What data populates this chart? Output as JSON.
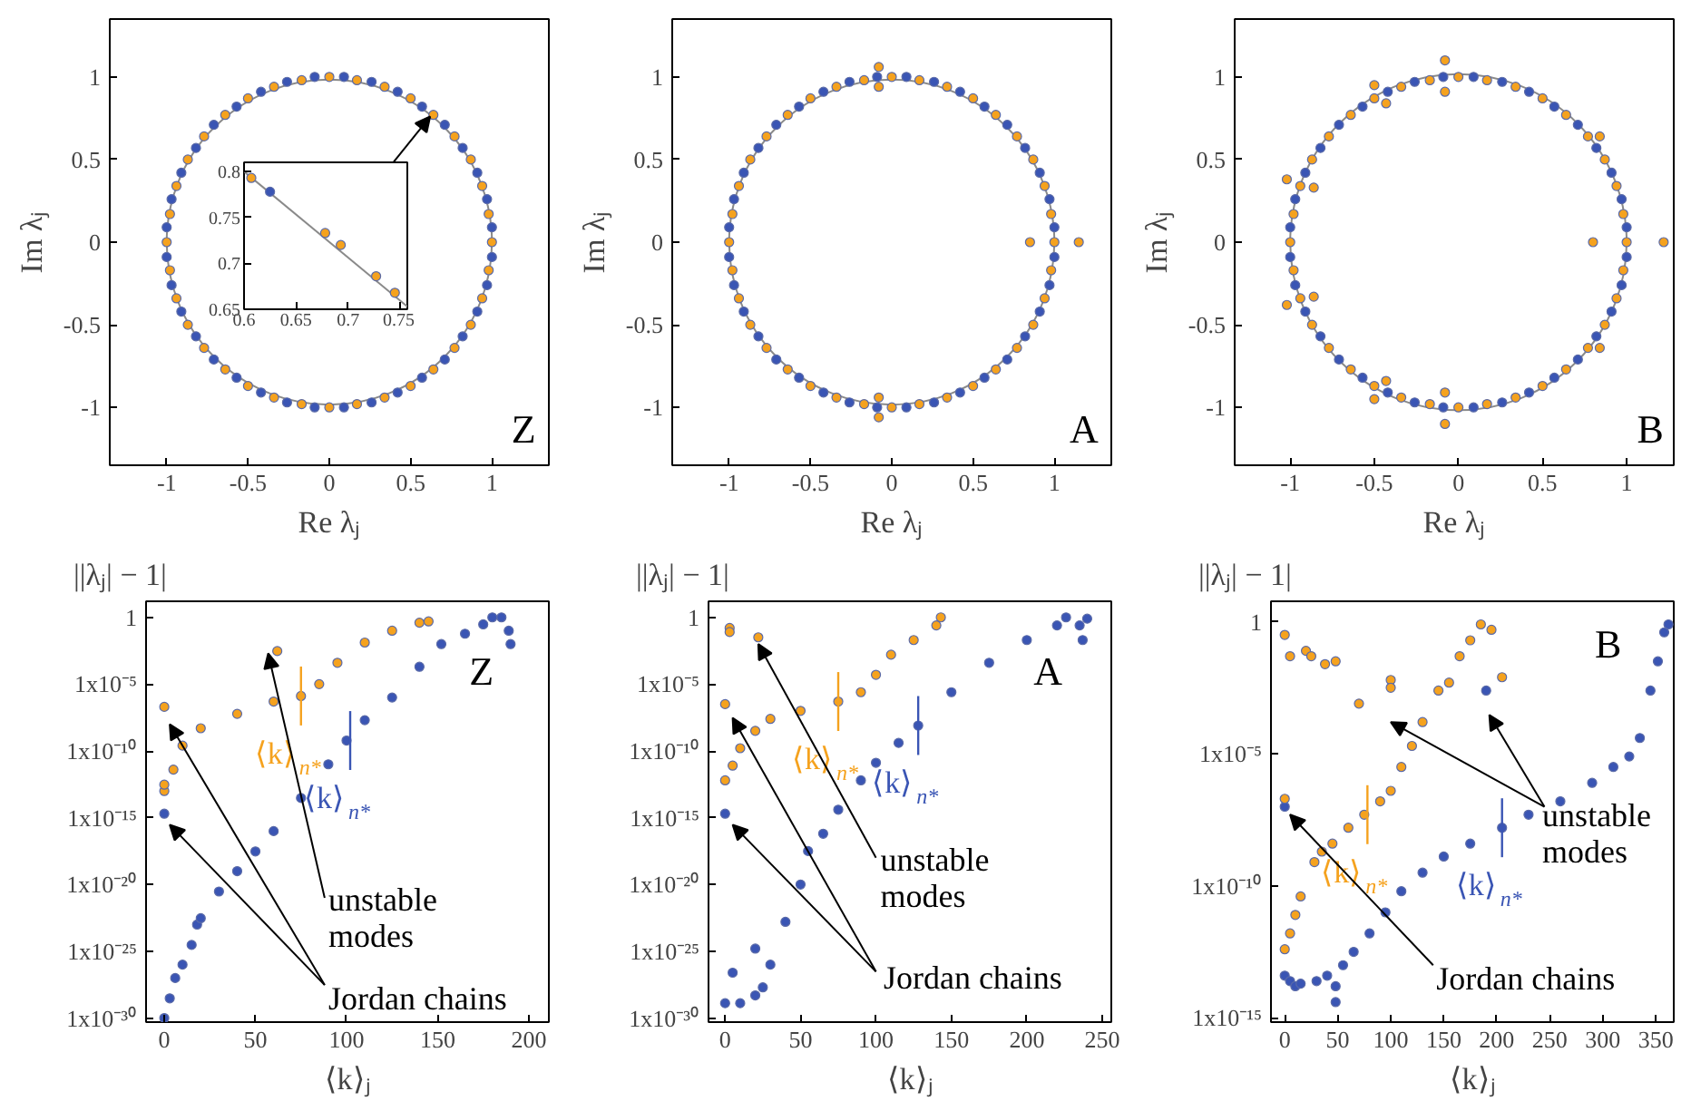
{
  "chart_data": [
    {
      "type": "scatter",
      "xlabel": "Re λⱼ",
      "ylabel": "Im λⱼ",
      "xlim": [
        -1.35,
        1.35
      ],
      "ylim": [
        -1.35,
        1.35
      ],
      "xticks": [
        -1,
        -0.5,
        0,
        0.5,
        1
      ],
      "yticks": [
        -1,
        -0.5,
        0,
        0.5,
        1
      ],
      "marker": "circle",
      "annotations": [
        "Z"
      ],
      "series": [
        {
          "color": "#3a55b4",
          "x": [
            1.0,
            0.97,
            0.91,
            0.82,
            0.71,
            0.57,
            0.42,
            0.26,
            0.09,
            -0.09,
            -0.26,
            -0.42,
            -0.57,
            -0.71,
            -0.82,
            -0.91,
            -0.97,
            -1.0,
            -1.0,
            -0.97,
            -0.91,
            -0.82,
            -0.71,
            -0.57,
            -0.42,
            -0.26,
            -0.09,
            0.09,
            0.26,
            0.42,
            0.57,
            0.71,
            0.82,
            0.91,
            0.97,
            1.0
          ],
          "values": [
            0.09,
            0.26,
            0.42,
            0.57,
            0.71,
            0.82,
            0.91,
            0.97,
            1.0,
            1.0,
            0.97,
            0.91,
            0.82,
            0.71,
            0.57,
            0.42,
            0.26,
            0.09,
            -0.09,
            -0.26,
            -0.42,
            -0.57,
            -0.71,
            -0.82,
            -0.91,
            -0.97,
            -1.0,
            -1.0,
            -0.97,
            -0.91,
            -0.82,
            -0.71,
            -0.57,
            -0.42,
            -0.26,
            -0.09
          ]
        },
        {
          "color": "#f5a21e",
          "x": [
            1,
            0.98,
            0.94,
            0.87,
            0.77,
            0.64,
            0.5,
            0.34,
            0.17,
            0,
            -0.17,
            -0.34,
            -0.5,
            -0.64,
            -0.77,
            -0.87,
            -0.94,
            -0.98,
            -1,
            -0.98,
            -0.94,
            -0.87,
            -0.77,
            -0.64,
            -0.5,
            -0.34,
            -0.17,
            0,
            0.17,
            0.34,
            0.5,
            0.64,
            0.77,
            0.87,
            0.94,
            0.98
          ],
          "values": [
            0,
            0.17,
            0.34,
            0.5,
            0.64,
            0.77,
            0.87,
            0.94,
            0.98,
            1,
            0.98,
            0.94,
            0.87,
            0.77,
            0.64,
            0.5,
            0.34,
            0.17,
            0,
            -0.17,
            -0.34,
            -0.5,
            -0.64,
            -0.77,
            -0.87,
            -0.94,
            -0.98,
            -1,
            -0.98,
            -0.94,
            -0.87,
            -0.77,
            -0.64,
            -0.5,
            -0.34,
            -0.17
          ]
        }
      ]
    },
    {
      "type": "scatter",
      "xlim": [
        0.6,
        0.757
      ],
      "ylim": [
        0.65,
        0.81
      ],
      "xticks": [
        0.6,
        0.65,
        0.7,
        0.75
      ],
      "yticks": [
        0.65,
        0.7,
        0.75,
        0.8
      ],
      "marker": "circle",
      "series": [
        {
          "type": "line",
          "marker": "none",
          "color": "#8a8a8a",
          "x": [
            0.6,
            0.757
          ],
          "values": [
            0.8,
            0.653
          ]
        },
        {
          "color": "#3a55b4",
          "x": [
            0.625
          ],
          "values": [
            0.778
          ]
        },
        {
          "color": "#f5a21e",
          "x": [
            0.607,
            0.678,
            0.693,
            0.727,
            0.745
          ],
          "values": [
            0.793,
            0.733,
            0.72,
            0.686,
            0.668
          ]
        }
      ]
    },
    {
      "type": "scatter",
      "xlabel": "Re λⱼ",
      "ylabel": "Im λⱼ",
      "xlim": [
        -1.35,
        1.35
      ],
      "ylim": [
        -1.35,
        1.35
      ],
      "xticks": [
        -1,
        -0.5,
        0,
        0.5,
        1
      ],
      "yticks": [
        -1,
        -0.5,
        0,
        0.5,
        1
      ],
      "marker": "circle",
      "annotations": [
        "A"
      ],
      "series": [
        {
          "color": "#3a55b4",
          "x": [
            1.0,
            0.97,
            0.91,
            0.82,
            0.71,
            0.57,
            0.42,
            0.26,
            0.09,
            -0.09,
            -0.26,
            -0.42,
            -0.57,
            -0.71,
            -0.82,
            -0.91,
            -0.97,
            -1.0,
            -1.0,
            -0.97,
            -0.91,
            -0.82,
            -0.71,
            -0.57,
            -0.42,
            -0.26,
            -0.09,
            0.09,
            0.26,
            0.42,
            0.57,
            0.71,
            0.82,
            0.91,
            0.97,
            1.0
          ],
          "values": [
            0.09,
            0.26,
            0.42,
            0.57,
            0.71,
            0.82,
            0.91,
            0.97,
            1.0,
            1.0,
            0.97,
            0.91,
            0.82,
            0.71,
            0.57,
            0.42,
            0.26,
            0.09,
            -0.09,
            -0.26,
            -0.42,
            -0.57,
            -0.71,
            -0.82,
            -0.91,
            -0.97,
            -1.0,
            -1.0,
            -0.97,
            -0.91,
            -0.82,
            -0.71,
            -0.57,
            -0.42,
            -0.26,
            -0.09
          ]
        },
        {
          "color": "#f5a21e",
          "x": [
            1,
            0.98,
            0.94,
            0.87,
            0.77,
            0.64,
            0.5,
            0.34,
            0.17,
            0,
            -0.17,
            -0.34,
            -0.5,
            -0.64,
            -0.77,
            -0.87,
            -0.94,
            -0.98,
            -1,
            -0.98,
            -0.94,
            -0.87,
            -0.77,
            -0.64,
            -0.5,
            -0.34,
            -0.17,
            0,
            0.17,
            0.34,
            0.5,
            0.64,
            0.77,
            0.87,
            0.94,
            0.98,
            0.85,
            1.15,
            -0.08,
            -0.08,
            -0.08,
            -0.08
          ],
          "values": [
            0,
            0.17,
            0.34,
            0.5,
            0.64,
            0.77,
            0.87,
            0.94,
            0.98,
            1,
            0.98,
            0.94,
            0.87,
            0.77,
            0.64,
            0.5,
            0.34,
            0.17,
            0,
            -0.17,
            -0.34,
            -0.5,
            -0.64,
            -0.77,
            -0.87,
            -0.94,
            -0.98,
            -1,
            -0.98,
            -0.94,
            -0.87,
            -0.77,
            -0.64,
            -0.5,
            -0.34,
            -0.17,
            0,
            0,
            1.06,
            0.94,
            -0.94,
            -1.06
          ]
        }
      ]
    },
    {
      "type": "scatter",
      "xlabel": "Re λⱼ",
      "ylabel": "Im λⱼ",
      "xlim": [
        -1.33,
        1.28
      ],
      "ylim": [
        -1.35,
        1.35
      ],
      "xticks": [
        -1,
        -0.5,
        0,
        0.5,
        1
      ],
      "yticks": [
        -1,
        -0.5,
        0,
        0.5,
        1
      ],
      "marker": "circle",
      "annotations": [
        "B"
      ],
      "series": [
        {
          "color": "#3a55b4",
          "x": [
            1.0,
            0.97,
            0.91,
            0.82,
            0.71,
            0.57,
            0.42,
            0.26,
            0.09,
            -0.09,
            -0.26,
            -0.42,
            -0.57,
            -0.71,
            -0.82,
            -0.91,
            -0.97,
            -1.0,
            -1.0,
            -0.97,
            -0.91,
            -0.82,
            -0.71,
            -0.57,
            -0.42,
            -0.26,
            -0.09,
            0.09,
            0.26,
            0.42,
            0.57,
            0.71,
            0.82,
            0.91,
            0.97,
            1.0
          ],
          "values": [
            0.09,
            0.26,
            0.42,
            0.57,
            0.71,
            0.82,
            0.91,
            0.97,
            1.0,
            1.0,
            0.97,
            0.91,
            0.82,
            0.71,
            0.57,
            0.42,
            0.26,
            0.09,
            -0.09,
            -0.26,
            -0.42,
            -0.57,
            -0.71,
            -0.82,
            -0.91,
            -0.97,
            -1.0,
            -1.0,
            -0.97,
            -0.91,
            -0.82,
            -0.71,
            -0.57,
            -0.42,
            -0.26,
            -0.09
          ]
        },
        {
          "color": "#f5a21e",
          "x": [
            1,
            0.98,
            0.94,
            0.87,
            0.77,
            0.64,
            0.5,
            0.34,
            0.17,
            0,
            -0.17,
            -0.34,
            -0.5,
            -0.64,
            -0.77,
            -0.87,
            -0.94,
            -0.98,
            -1,
            -0.98,
            -0.94,
            -0.87,
            -0.77,
            -0.64,
            -0.5,
            -0.34,
            -0.17,
            0,
            0.17,
            0.34,
            0.5,
            0.64,
            0.77,
            0.87,
            0.94,
            0.98,
            0.8,
            1.22,
            -1.02,
            -1.02,
            -0.86,
            -0.86,
            -0.08,
            -0.08,
            -0.08,
            -0.08,
            0.84,
            0.84,
            -0.5,
            -0.5,
            -0.43,
            -0.43
          ],
          "values": [
            0,
            0.17,
            0.34,
            0.5,
            0.64,
            0.77,
            0.87,
            0.94,
            0.98,
            1,
            0.98,
            0.94,
            0.87,
            0.77,
            0.64,
            0.5,
            0.34,
            0.17,
            0,
            -0.17,
            -0.34,
            -0.5,
            -0.64,
            -0.77,
            -0.87,
            -0.94,
            -0.98,
            -1,
            -0.98,
            -0.94,
            -0.87,
            -0.77,
            -0.64,
            -0.5,
            -0.34,
            -0.17,
            0,
            0,
            0.38,
            -0.38,
            0.33,
            -0.33,
            1.1,
            0.91,
            -0.91,
            -1.1,
            0.64,
            -0.64,
            0.95,
            -0.95,
            0.84,
            -0.84
          ]
        }
      ]
    },
    {
      "type": "scatter",
      "xlabel": "⟨k⟩ⱼ",
      "ylabel": "||λⱼ| − 1|",
      "log": true,
      "xlim": [
        -10,
        211
      ],
      "ylim": [
        5e-31,
        16
      ],
      "xticks": [
        0,
        50,
        100,
        150,
        200
      ],
      "yticks": [
        {
          "value": 1e-30,
          "label": "1x10⁻³⁰"
        },
        {
          "value": 1e-25,
          "label": "1x10⁻²⁵"
        },
        {
          "value": 1e-20,
          "label": "1x10⁻²⁰"
        },
        {
          "value": 1e-15,
          "label": "1x10⁻¹⁵"
        },
        {
          "value": 1e-10,
          "label": "1x10⁻¹⁰"
        },
        {
          "value": 1e-05,
          "label": "1x10⁻⁵"
        },
        1
      ],
      "marker": "circle",
      "annotations": [
        "Z",
        "unstable\nmodes",
        "Jordan chains"
      ],
      "ref_lines": [
        {
          "axis": "x",
          "value": 75,
          "label": "⟨k⟩$_{n*}$",
          "color": "#f5a21e"
        },
        {
          "axis": "x",
          "value": 102,
          "label": "⟨k⟩$_{n*}$",
          "color": "#3a55b4"
        }
      ],
      "series": [
        {
          "color": "#3a55b4",
          "x": [
            0,
            3,
            6,
            10,
            15,
            18,
            20,
            30,
            40,
            50,
            60,
            75,
            90,
            100,
            110,
            125,
            140,
            152,
            165,
            175,
            180,
            185,
            189,
            190,
            0
          ],
          "values": [
            1e-30,
            3e-29,
            1e-27,
            1e-26,
            3e-25,
            1e-23,
            3e-23,
            3e-21,
            1e-19,
            3e-18,
            1e-16,
            3e-14,
            1e-11,
            6e-10,
            2e-08,
            1e-06,
            0.0002,
            0.01,
            0.06,
            0.3,
            1,
            1,
            0.1,
            0.01,
            2e-15
          ]
        },
        {
          "color": "#f5a21e",
          "x": [
            0,
            0,
            5,
            10,
            20,
            40,
            60,
            75,
            85,
            95,
            110,
            125,
            140,
            145,
            0,
            62
          ],
          "values": [
            1e-13,
            3e-13,
            4e-12,
            2.5e-10,
            5e-09,
            6e-08,
            5e-07,
            1.3e-06,
            1e-05,
            0.0004,
            0.013,
            0.1,
            0.4,
            0.5,
            2e-07,
            0.003
          ]
        }
      ]
    },
    {
      "type": "scatter",
      "xlabel": "⟨k⟩ⱼ",
      "ylabel": "||λⱼ| − 1|",
      "log": true,
      "xlim": [
        -11,
        256
      ],
      "ylim": [
        5e-31,
        16
      ],
      "xticks": [
        0,
        50,
        100,
        150,
        200,
        250
      ],
      "yticks": [
        {
          "value": 1e-30,
          "label": "1x10⁻³⁰"
        },
        {
          "value": 1e-25,
          "label": "1x10⁻²⁵"
        },
        {
          "value": 1e-20,
          "label": "1x10⁻²⁰"
        },
        {
          "value": 1e-15,
          "label": "1x10⁻¹⁵"
        },
        {
          "value": 1e-10,
          "label": "1x10⁻¹⁰"
        },
        {
          "value": 1e-05,
          "label": "1x10⁻⁵"
        },
        1
      ],
      "marker": "circle",
      "annotations": [
        "A",
        "unstable\nmodes",
        "Jordan chains"
      ],
      "ref_lines": [
        {
          "axis": "x",
          "value": 75,
          "label": "⟨k⟩$_{n*}$",
          "color": "#f5a21e"
        },
        {
          "axis": "x",
          "value": 128,
          "label": "⟨k⟩$_{n*}$",
          "color": "#3a55b4"
        }
      ],
      "series": [
        {
          "color": "#3a55b4",
          "x": [
            0,
            10,
            20,
            25,
            30,
            40,
            50,
            55,
            65,
            75,
            90,
            100,
            115,
            128,
            150,
            175,
            200,
            220,
            226,
            235,
            237,
            240,
            5,
            20,
            0
          ],
          "values": [
            1.3e-29,
            1.3e-29,
            5e-29,
            2e-28,
            1e-26,
            1.6e-23,
            1e-20,
            3.2e-18,
            6.3e-17,
            4e-15,
            6.3e-13,
            1.3e-11,
            4e-10,
            8e-09,
            2.5e-06,
            0.0004,
            0.02,
            0.25,
            1,
            0.25,
            0.02,
            0.8,
            2.5e-27,
            1.6e-25,
            2e-15
          ]
        },
        {
          "color": "#f5a21e",
          "x": [
            0,
            5,
            10,
            20,
            30,
            50,
            75,
            90,
            100,
            110,
            125,
            140,
            143,
            0,
            3,
            3,
            22
          ],
          "values": [
            6.3e-13,
            8e-12,
            1.6e-10,
            3.2e-09,
            2.5e-08,
            1e-07,
            5e-07,
            2.5e-06,
            5e-05,
            0.0016,
            0.02,
            0.25,
            1,
            3.2e-07,
            0.16,
            0.08,
            0.032
          ]
        }
      ]
    },
    {
      "type": "scatter",
      "xlabel": "⟨k⟩ⱼ",
      "ylabel": "||λⱼ| − 1|",
      "log": true,
      "xlim": [
        -13,
        367
      ],
      "ylim": [
        7e-16,
        6
      ],
      "xticks": [
        0,
        50,
        100,
        150,
        200,
        250,
        300,
        350
      ],
      "yticks": [
        {
          "value": 1e-15,
          "label": "1x10⁻¹⁵"
        },
        {
          "value": 1e-10,
          "label": "1x10⁻¹⁰"
        },
        {
          "value": 1e-05,
          "label": "1x10⁻⁵"
        },
        1
      ],
      "marker": "circle",
      "annotations": [
        "B",
        "unstable\nmodes",
        "Jordan chains"
      ],
      "ref_lines": [
        {
          "axis": "x",
          "value": 78,
          "label": "⟨k⟩$_{n*}$",
          "color": "#f5a21e"
        },
        {
          "axis": "x",
          "value": 205,
          "label": "⟨k⟩$_{n*}$",
          "color": "#3a55b4"
        }
      ],
      "series": [
        {
          "color": "#3a55b4",
          "x": [
            0,
            5,
            10,
            15,
            30,
            40,
            48,
            48,
            55,
            65,
            80,
            95,
            110,
            130,
            150,
            175,
            205,
            230,
            260,
            290,
            310,
            325,
            335,
            345,
            352,
            358,
            362,
            0,
            190
          ],
          "values": [
            4e-14,
            2.5e-14,
            1.6e-14,
            2e-14,
            2.5e-14,
            4e-14,
            1.6e-14,
            4e-15,
            1e-13,
            3.2e-13,
            1.6e-12,
            1e-11,
            6.3e-11,
            3.2e-10,
            1.3e-09,
            4e-09,
            1.6e-08,
            5e-08,
            1.6e-07,
            8e-07,
            3.2e-06,
            8e-06,
            4e-05,
            0.0025,
            0.032,
            0.4,
            0.8,
            1e-07,
            0.0025
          ]
        },
        {
          "color": "#f5a21e",
          "x": [
            0,
            5,
            10,
            15,
            28,
            35,
            45,
            60,
            75,
            90,
            100,
            110,
            120,
            130,
            145,
            155,
            165,
            175,
            185,
            195,
            205,
            0,
            0,
            5,
            20,
            25,
            38,
            48,
            70,
            100,
            100
          ],
          "values": [
            4e-13,
            1.6e-12,
            8e-12,
            4e-11,
            8e-10,
            2e-09,
            4e-09,
            1.6e-08,
            5e-08,
            1.6e-07,
            4e-07,
            3.2e-06,
            2e-05,
            0.00016,
            0.0025,
            0.005,
            0.05,
            0.2,
            0.8,
            0.5,
            0.008,
            2e-07,
            0.32,
            0.05,
            0.08,
            0.05,
            0.025,
            0.032,
            0.0008,
            0.0063,
            0.0032
          ]
        }
      ]
    }
  ]
}
